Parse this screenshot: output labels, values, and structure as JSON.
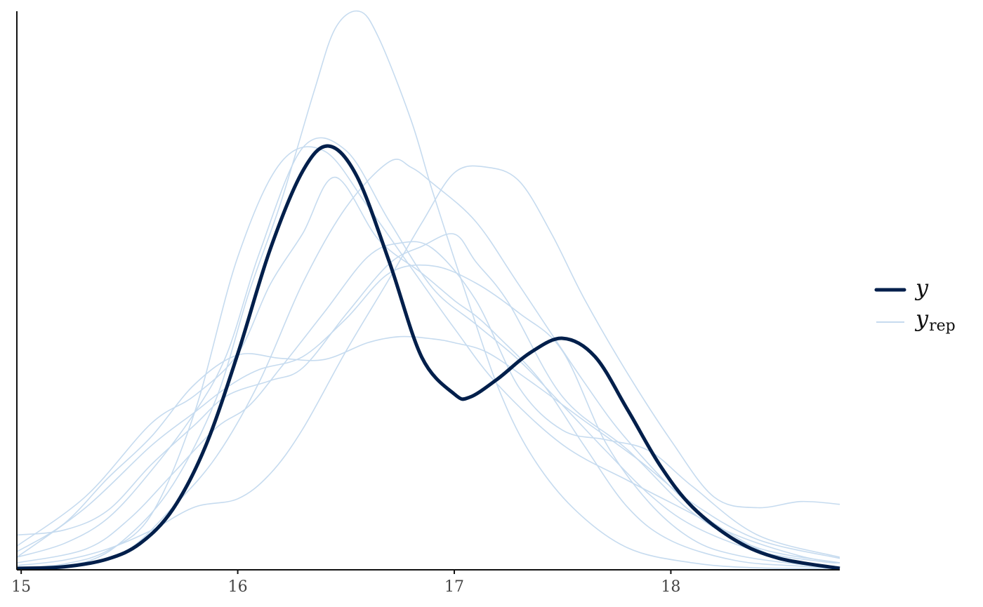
{
  "chart_data": {
    "type": "line",
    "xlim": [
      14.98,
      18.78
    ],
    "ylim": [
      0,
      1.0
    ],
    "x_ticks": [
      15,
      16,
      17,
      18
    ],
    "x_tick_labels": [
      "15",
      "16",
      "17",
      "18"
    ],
    "y_ticks_visible": false,
    "grid": false,
    "legend": {
      "position": "right",
      "entries": [
        {
          "key": "y",
          "label": "y",
          "sub": "",
          "color": "#011f4b"
        },
        {
          "key": "yrep",
          "label": "y",
          "sub": "rep",
          "color": "#c6dbef"
        }
      ]
    },
    "observed": {
      "name": "y",
      "color": "#011f4b",
      "x": [
        14.98,
        15.2,
        15.4,
        15.55,
        15.7,
        15.85,
        16.0,
        16.15,
        16.3,
        16.42,
        16.55,
        16.7,
        16.85,
        17.0,
        17.07,
        17.2,
        17.35,
        17.5,
        17.65,
        17.8,
        17.95,
        18.1,
        18.3,
        18.5,
        18.78
      ],
      "y": [
        0.0,
        0.003,
        0.017,
        0.045,
        0.106,
        0.218,
        0.385,
        0.573,
        0.713,
        0.758,
        0.704,
        0.55,
        0.379,
        0.313,
        0.307,
        0.34,
        0.387,
        0.413,
        0.38,
        0.285,
        0.185,
        0.11,
        0.05,
        0.018,
        0.0
      ]
    },
    "replicates": [
      {
        "x": [
          14.98,
          15.3,
          15.6,
          15.8,
          16.0,
          16.15,
          16.3,
          16.45,
          16.65,
          16.85,
          17.0,
          17.1,
          17.2,
          17.4,
          17.6,
          17.8,
          18.0,
          18.3,
          18.6,
          18.78
        ],
        "y": [
          0.04,
          0.13,
          0.26,
          0.31,
          0.385,
          0.51,
          0.601,
          0.702,
          0.59,
          0.53,
          0.481,
          0.453,
          0.417,
          0.336,
          0.22,
          0.11,
          0.05,
          0.014,
          0.004,
          0.001
        ]
      },
      {
        "x": [
          14.98,
          15.3,
          15.6,
          15.8,
          15.95,
          16.1,
          16.3,
          16.5,
          16.7,
          16.9,
          17.1,
          17.3,
          17.5,
          17.7,
          17.9,
          18.1,
          18.3,
          18.6,
          18.78
        ],
        "y": [
          0.02,
          0.11,
          0.22,
          0.28,
          0.325,
          0.357,
          0.38,
          0.448,
          0.53,
          0.543,
          0.512,
          0.458,
          0.39,
          0.225,
          0.118,
          0.052,
          0.024,
          0.007,
          0.003
        ]
      },
      {
        "x": [
          14.98,
          15.2,
          15.4,
          15.6,
          15.8,
          15.95,
          16.1,
          16.3,
          16.5,
          16.7,
          16.9,
          17.1,
          17.3,
          17.5,
          17.7,
          17.9,
          18.1,
          18.4,
          18.7,
          18.78
        ],
        "y": [
          0.02,
          0.045,
          0.09,
          0.175,
          0.279,
          0.385,
          0.566,
          0.755,
          0.75,
          0.623,
          0.503,
          0.438,
          0.373,
          0.293,
          0.211,
          0.133,
          0.077,
          0.031,
          0.012,
          0.01
        ]
      },
      {
        "x": [
          14.98,
          15.3,
          15.5,
          15.7,
          15.9,
          16.1,
          16.3,
          16.5,
          16.7,
          16.8,
          16.9,
          17.1,
          17.3,
          17.6,
          17.8,
          18.1,
          18.4,
          18.6,
          18.78
        ],
        "y": [
          0.0,
          0.01,
          0.035,
          0.11,
          0.2,
          0.335,
          0.512,
          0.648,
          0.73,
          0.72,
          0.691,
          0.622,
          0.508,
          0.334,
          0.23,
          0.11,
          0.035,
          0.01,
          0.003
        ]
      },
      {
        "x": [
          14.98,
          15.3,
          15.5,
          15.7,
          15.9,
          16.05,
          16.2,
          16.35,
          16.45,
          16.56,
          16.65,
          16.8,
          16.9,
          17.05,
          17.2,
          17.35,
          17.55,
          17.8,
          18.1,
          18.4,
          18.78
        ],
        "y": [
          0.0,
          0.012,
          0.06,
          0.15,
          0.304,
          0.493,
          0.658,
          0.853,
          0.969,
          1.0,
          0.953,
          0.805,
          0.676,
          0.497,
          0.327,
          0.207,
          0.108,
          0.037,
          0.01,
          0.001,
          0.0
        ]
      },
      {
        "x": [
          14.98,
          15.2,
          15.4,
          15.6,
          15.8,
          16.0,
          16.2,
          16.4,
          16.6,
          16.8,
          17.0,
          17.2,
          17.5,
          17.8,
          18.0,
          18.3,
          18.6,
          18.78
        ],
        "y": [
          0.0,
          0.008,
          0.032,
          0.096,
          0.279,
          0.559,
          0.729,
          0.749,
          0.65,
          0.54,
          0.431,
          0.33,
          0.222,
          0.158,
          0.118,
          0.06,
          0.022,
          0.01
        ]
      },
      {
        "x": [
          14.98,
          15.2,
          15.4,
          15.6,
          15.8,
          15.95,
          16.15,
          16.3,
          16.5,
          16.7,
          16.85,
          17.0,
          17.1,
          17.25,
          17.5,
          17.8,
          18.1,
          18.4,
          18.78
        ],
        "y": [
          0.06,
          0.069,
          0.104,
          0.186,
          0.257,
          0.31,
          0.337,
          0.36,
          0.456,
          0.547,
          0.578,
          0.6,
          0.55,
          0.477,
          0.308,
          0.213,
          0.1,
          0.037,
          0.01
        ]
      },
      {
        "x": [
          14.98,
          15.2,
          15.4,
          15.6,
          15.8,
          16.0,
          16.2,
          16.4,
          16.6,
          16.75,
          16.9,
          17.0,
          17.15,
          17.35,
          17.6,
          17.85,
          18.1,
          18.4,
          18.78
        ],
        "y": [
          0.03,
          0.081,
          0.162,
          0.236,
          0.33,
          0.383,
          0.377,
          0.375,
          0.405,
          0.416,
          0.412,
          0.405,
          0.388,
          0.336,
          0.265,
          0.195,
          0.117,
          0.052,
          0.018
        ]
      },
      {
        "x": [
          14.98,
          15.2,
          15.4,
          15.6,
          15.8,
          16.0,
          16.15,
          16.3,
          16.5,
          16.7,
          16.85,
          17.0,
          17.15,
          17.3,
          17.45,
          17.6,
          17.8,
          18.0,
          18.2,
          18.4,
          18.6,
          18.78
        ],
        "y": [
          0.005,
          0.015,
          0.035,
          0.068,
          0.11,
          0.125,
          0.17,
          0.25,
          0.39,
          0.52,
          0.62,
          0.71,
          0.72,
          0.695,
          0.6,
          0.484,
          0.35,
          0.23,
          0.128,
          0.109,
          0.12,
          0.115
        ]
      },
      {
        "x": [
          14.98,
          15.3,
          15.5,
          15.7,
          15.9,
          16.05,
          16.2,
          16.4,
          16.6,
          16.75,
          16.9,
          17.1,
          17.3,
          17.5,
          17.7,
          17.9,
          18.1,
          18.4,
          18.78
        ],
        "y": [
          0.01,
          0.035,
          0.089,
          0.17,
          0.252,
          0.291,
          0.361,
          0.46,
          0.559,
          0.584,
          0.574,
          0.481,
          0.324,
          0.248,
          0.231,
          0.211,
          0.147,
          0.06,
          0.02
        ]
      }
    ]
  }
}
